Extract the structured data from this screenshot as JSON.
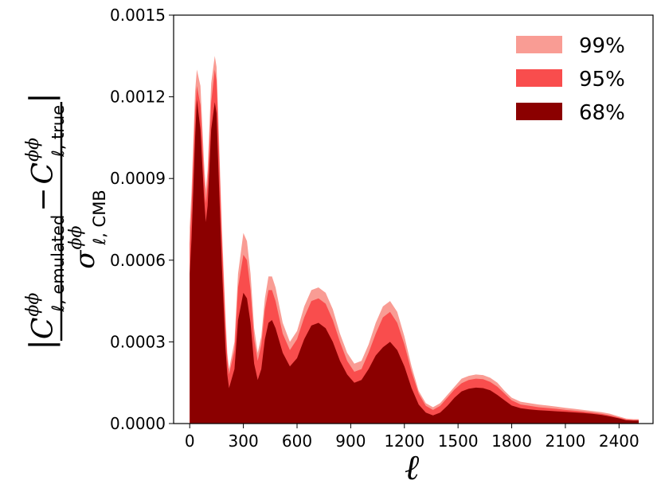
{
  "chart_data": {
    "type": "area",
    "xlabel": "ℓ",
    "ylabel": {
      "numerator": {
        "first_symbol": "C",
        "first_sup": "ϕϕ",
        "first_sub": "ℓ, emulated",
        "operator": "−",
        "second_symbol": "C",
        "second_sup": "ϕϕ",
        "second_sub": "ℓ, true"
      },
      "denominator": {
        "symbol": "σ",
        "sup": "ϕϕ",
        "sub": "ℓ, CMB"
      }
    },
    "xlim": [
      -90,
      2590
    ],
    "ylim": [
      0,
      0.0015
    ],
    "x_ticks": [
      0,
      300,
      600,
      900,
      1200,
      1500,
      1800,
      2100,
      2400
    ],
    "x_tick_labels": [
      "0",
      "300",
      "600",
      "900",
      "1200",
      "1500",
      "1800",
      "2100",
      "2400"
    ],
    "y_ticks": [
      0,
      0.0003,
      0.0006,
      0.0009,
      0.0012,
      0.0015
    ],
    "y_tick_labels": [
      "0.0000",
      "0.0003",
      "0.0006",
      "0.0009",
      "0.0012",
      "0.0015"
    ],
    "legend_position": "top-right",
    "series": [
      {
        "name": "99%",
        "color": "#f99c94",
        "x": [
          0,
          10,
          30,
          40,
          60,
          80,
          90,
          100,
          120,
          140,
          150,
          160,
          180,
          200,
          210,
          220,
          250,
          270,
          300,
          320,
          340,
          360,
          380,
          400,
          420,
          440,
          460,
          480,
          520,
          560,
          600,
          640,
          680,
          720,
          760,
          800,
          840,
          880,
          920,
          960,
          1000,
          1040,
          1080,
          1120,
          1160,
          1200,
          1240,
          1280,
          1320,
          1360,
          1400,
          1440,
          1480,
          1520,
          1560,
          1600,
          1640,
          1680,
          1720,
          1760,
          1800,
          1850,
          1900,
          1950,
          2000,
          2050,
          2100,
          2150,
          2200,
          2250,
          2300,
          2350,
          2400,
          2440,
          2480,
          2510
        ],
        "values": [
          0.00072,
          0.00085,
          0.00122,
          0.0013,
          0.00124,
          0.00096,
          0.00086,
          0.00093,
          0.00125,
          0.00135,
          0.00131,
          0.00112,
          0.00072,
          0.0004,
          0.00026,
          0.0002,
          0.0003,
          0.00055,
          0.0007,
          0.00067,
          0.00055,
          0.00035,
          0.00026,
          0.00032,
          0.00046,
          0.00054,
          0.00054,
          0.0005,
          0.00037,
          0.0003,
          0.00034,
          0.00043,
          0.00049,
          0.0005,
          0.00048,
          0.00042,
          0.00033,
          0.00026,
          0.00022,
          0.00023,
          0.00029,
          0.00037,
          0.00043,
          0.00045,
          0.00041,
          0.00032,
          0.00021,
          0.00012,
          7.5e-05,
          6e-05,
          7.5e-05,
          0.000105,
          0.000135,
          0.000165,
          0.000175,
          0.00018,
          0.000178,
          0.000168,
          0.00015,
          0.00012,
          9.5e-05,
          8e-05,
          7.5e-05,
          7e-05,
          6.6e-05,
          6.2e-05,
          5.8e-05,
          5.4e-05,
          5e-05,
          4.6e-05,
          4.2e-05,
          3.6e-05,
          2.6e-05,
          1.8e-05,
          1.6e-05,
          1.6e-05
        ]
      },
      {
        "name": "95%",
        "color": "#f94d4d",
        "x": [
          0,
          10,
          30,
          40,
          60,
          80,
          90,
          100,
          120,
          140,
          150,
          160,
          180,
          200,
          210,
          220,
          250,
          270,
          300,
          320,
          340,
          360,
          380,
          400,
          420,
          440,
          460,
          480,
          520,
          560,
          600,
          640,
          680,
          720,
          760,
          800,
          840,
          880,
          920,
          960,
          1000,
          1040,
          1080,
          1120,
          1160,
          1200,
          1240,
          1280,
          1320,
          1360,
          1400,
          1440,
          1480,
          1520,
          1560,
          1600,
          1640,
          1680,
          1720,
          1760,
          1800,
          1850,
          1900,
          1950,
          2000,
          2050,
          2100,
          2150,
          2200,
          2250,
          2300,
          2350,
          2400,
          2440,
          2480,
          2510
        ],
        "values": [
          0.00066,
          0.00079,
          0.00115,
          0.00124,
          0.00117,
          0.00091,
          0.00081,
          0.00088,
          0.00118,
          0.0013,
          0.00126,
          0.00107,
          0.00068,
          0.00036,
          0.00024,
          0.00018,
          0.00027,
          0.0005,
          0.00062,
          0.0006,
          0.00049,
          0.00031,
          0.00023,
          0.00029,
          0.00042,
          0.00049,
          0.00049,
          0.00045,
          0.00033,
          0.00027,
          0.00031,
          0.00039,
          0.00045,
          0.00046,
          0.00044,
          0.00038,
          0.0003,
          0.00023,
          0.00019,
          0.0002,
          0.00026,
          0.00033,
          0.00039,
          0.00041,
          0.00037,
          0.00029,
          0.00019,
          0.00011,
          6.5e-05,
          5e-05,
          6.5e-05,
          9.5e-05,
          0.000125,
          0.000148,
          0.00016,
          0.000165,
          0.000163,
          0.000153,
          0.000135,
          0.00011,
          8.5e-05,
          7e-05,
          6.5e-05,
          6e-05,
          5.7e-05,
          5.4e-05,
          5e-05,
          4.7e-05,
          4.4e-05,
          4e-05,
          3.6e-05,
          3e-05,
          2.2e-05,
          1.5e-05,
          1.3e-05,
          1.3e-05
        ]
      },
      {
        "name": "68%",
        "color": "#8b0000",
        "x": [
          0,
          10,
          30,
          40,
          60,
          80,
          90,
          100,
          120,
          140,
          150,
          160,
          180,
          200,
          210,
          220,
          250,
          270,
          300,
          320,
          340,
          360,
          380,
          400,
          420,
          440,
          460,
          480,
          520,
          560,
          600,
          640,
          680,
          720,
          760,
          800,
          840,
          880,
          920,
          960,
          1000,
          1040,
          1080,
          1120,
          1160,
          1200,
          1240,
          1280,
          1320,
          1360,
          1400,
          1440,
          1480,
          1520,
          1560,
          1600,
          1640,
          1680,
          1720,
          1760,
          1800,
          1850,
          1900,
          1950,
          2000,
          2050,
          2100,
          2150,
          2200,
          2250,
          2300,
          2350,
          2400,
          2440,
          2480,
          2510
        ],
        "values": [
          0.00055,
          0.00068,
          0.00105,
          0.00119,
          0.00108,
          0.00083,
          0.00074,
          0.0008,
          0.00108,
          0.00118,
          0.00114,
          0.00094,
          0.00058,
          0.00028,
          0.00018,
          0.00013,
          0.0002,
          0.00038,
          0.00048,
          0.00046,
          0.00037,
          0.00022,
          0.00016,
          0.0002,
          0.00031,
          0.00037,
          0.00038,
          0.00035,
          0.00026,
          0.00021,
          0.00024,
          0.00031,
          0.00036,
          0.00037,
          0.00035,
          0.0003,
          0.00023,
          0.00018,
          0.00015,
          0.00016,
          0.0002,
          0.00025,
          0.00028,
          0.0003,
          0.00027,
          0.00021,
          0.00013,
          7e-05,
          4e-05,
          3e-05,
          4e-05,
          6.5e-05,
          9.5e-05,
          0.000118,
          0.000128,
          0.000132,
          0.00013,
          0.000122,
          0.000105,
          8.5e-05,
          6.6e-05,
          5.6e-05,
          5.2e-05,
          4.9e-05,
          4.7e-05,
          4.5e-05,
          4.3e-05,
          4.1e-05,
          3.9e-05,
          3.6e-05,
          3.2e-05,
          2.6e-05,
          1.9e-05,
          1.2e-05,
          1.1e-05,
          1.1e-05
        ]
      }
    ]
  }
}
